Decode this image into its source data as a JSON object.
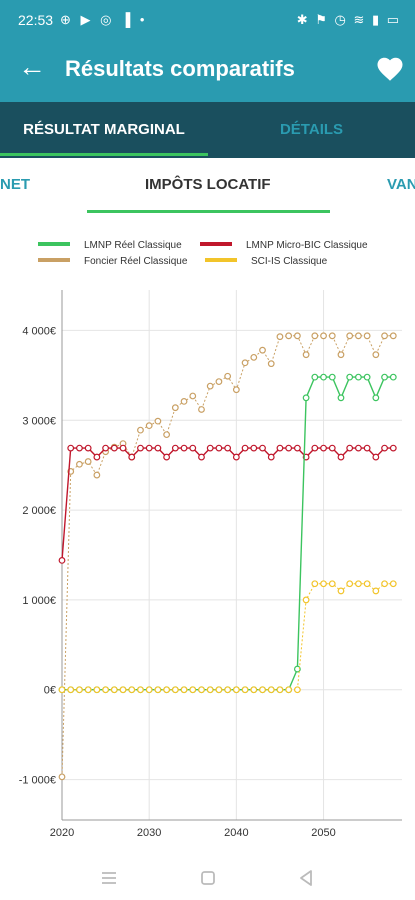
{
  "status": {
    "time": "22:53",
    "left_icons": "⊕ ▶ ◎ ▐ •",
    "right_icons": "✱ ⚑ ◷ ≋ ▮ ▭"
  },
  "appbar": {
    "title": "Résultats comparatifs"
  },
  "tabs": [
    {
      "label": "RÉSULTAT MARGINAL"
    },
    {
      "label": "DÉTAILS"
    }
  ],
  "subtabs": [
    {
      "label": "NET"
    },
    {
      "label": "IMPÔTS LOCATIF"
    },
    {
      "label": "VAN"
    }
  ],
  "colors": {
    "teal": "#2a9bb0",
    "dark": "#1a4f5e",
    "accent": "#3cc45f"
  },
  "chart_data": {
    "type": "line",
    "x": [
      2020,
      2021,
      2022,
      2023,
      2024,
      2025,
      2026,
      2027,
      2028,
      2029,
      2030,
      2031,
      2032,
      2033,
      2034,
      2035,
      2036,
      2037,
      2038,
      2039,
      2040,
      2041,
      2042,
      2043,
      2044,
      2045,
      2046,
      2047,
      2048,
      2049,
      2050,
      2051,
      2052,
      2053,
      2054,
      2055,
      2056,
      2057,
      2058
    ],
    "yticks": [
      -1000,
      0,
      1000,
      2000,
      3000,
      4000
    ],
    "ytick_labels": [
      "-1 000€",
      "0€",
      "1 000€",
      "2 000€",
      "3 000€",
      "4 000€"
    ],
    "xticks": [
      2020,
      2030,
      2040,
      2050
    ],
    "xtick_labels": [
      "2020",
      "2030",
      "2040",
      "2050"
    ],
    "xlim": [
      2020,
      2059
    ],
    "ylim": [
      -1450,
      4450
    ],
    "grid": true,
    "legend": "top",
    "series": [
      {
        "name": "LMNP Réel Classique",
        "color": "#3cc45f",
        "values": [
          0,
          0,
          0,
          0,
          0,
          0,
          0,
          0,
          0,
          0,
          0,
          0,
          0,
          0,
          0,
          0,
          0,
          0,
          0,
          0,
          0,
          0,
          0,
          0,
          0,
          0,
          0,
          230,
          3250,
          3480,
          3480,
          3480,
          3250,
          3480,
          3480,
          3480,
          3250,
          3480,
          3480
        ]
      },
      {
        "name": "LMNP Micro-BIC Classique",
        "color": "#c0172c",
        "values": [
          1440,
          2690,
          2690,
          2690,
          2590,
          2690,
          2690,
          2690,
          2590,
          2690,
          2690,
          2690,
          2590,
          2690,
          2690,
          2690,
          2590,
          2690,
          2690,
          2690,
          2590,
          2690,
          2690,
          2690,
          2590,
          2690,
          2690,
          2690,
          2590,
          2690,
          2690,
          2690,
          2590,
          2690,
          2690,
          2690,
          2590,
          2690,
          2690
        ]
      },
      {
        "name": "Foncier Réel Classique",
        "color": "#c9a064",
        "values": [
          -970,
          2430,
          2510,
          2540,
          2390,
          2650,
          2700,
          2740,
          2590,
          2890,
          2940,
          2990,
          2840,
          3140,
          3210,
          3270,
          3120,
          3380,
          3430,
          3490,
          3340,
          3640,
          3700,
          3780,
          3630,
          3930,
          3940,
          3940,
          3730,
          3940,
          3940,
          3940,
          3730,
          3940,
          3940,
          3940,
          3730,
          3940,
          3940
        ]
      },
      {
        "name": "SCI-IS Classique",
        "color": "#f2c42a",
        "values": [
          0,
          0,
          0,
          0,
          0,
          0,
          0,
          0,
          0,
          0,
          0,
          0,
          0,
          0,
          0,
          0,
          0,
          0,
          0,
          0,
          0,
          0,
          0,
          0,
          0,
          0,
          0,
          0,
          1000,
          1180,
          1180,
          1180,
          1100,
          1180,
          1180,
          1180,
          1100,
          1180,
          1180
        ]
      }
    ]
  }
}
